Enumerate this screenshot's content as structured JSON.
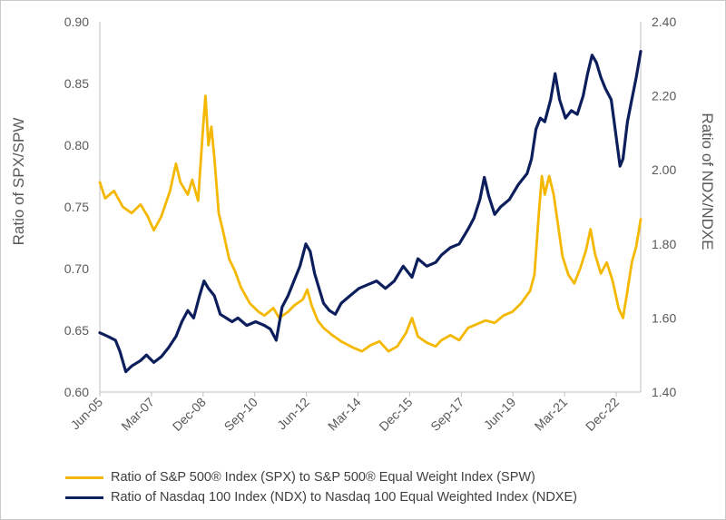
{
  "chart_data": {
    "type": "line",
    "title": "",
    "xlabel": "",
    "y_left_label": "Ratio of SPX/SPW",
    "y_right_label": "Ratio of NDX/NDXE",
    "y_left_range": [
      0.6,
      0.9
    ],
    "y_right_range": [
      1.4,
      2.4
    ],
    "y_left_ticks": [
      "0.60",
      "0.65",
      "0.70",
      "0.75",
      "0.80",
      "0.85",
      "0.90"
    ],
    "y_right_ticks": [
      "1.40",
      "1.60",
      "1.80",
      "2.00",
      "2.20",
      "2.40"
    ],
    "x_range": [
      2005.42,
      2023.75
    ],
    "x_tick_labels": [
      "Jun-05",
      "Mar-07",
      "Dec-08",
      "Sep-10",
      "Jun-12",
      "Mar-14",
      "Dec-15",
      "Sep-17",
      "Jun-19",
      "Mar-21",
      "Dec-22"
    ],
    "x_tick_values": [
      2005.42,
      2007.17,
      2008.92,
      2010.67,
      2012.42,
      2014.17,
      2015.92,
      2017.67,
      2019.42,
      2021.17,
      2022.92
    ],
    "series": [
      {
        "name": "Ratio of S&P 500® Index (SPX) to S&P 500® Equal Weight Index (SPW)",
        "axis": "left",
        "color": "#f5b800",
        "points": [
          [
            2005.42,
            0.77
          ],
          [
            2005.6,
            0.757
          ],
          [
            2005.9,
            0.763
          ],
          [
            2006.2,
            0.75
          ],
          [
            2006.5,
            0.745
          ],
          [
            2006.8,
            0.752
          ],
          [
            2007.05,
            0.742
          ],
          [
            2007.25,
            0.731
          ],
          [
            2007.5,
            0.742
          ],
          [
            2007.8,
            0.763
          ],
          [
            2008.0,
            0.785
          ],
          [
            2008.15,
            0.77
          ],
          [
            2008.4,
            0.76
          ],
          [
            2008.55,
            0.772
          ],
          [
            2008.75,
            0.755
          ],
          [
            2008.92,
            0.815
          ],
          [
            2009.0,
            0.84
          ],
          [
            2009.1,
            0.8
          ],
          [
            2009.2,
            0.815
          ],
          [
            2009.3,
            0.79
          ],
          [
            2009.45,
            0.745
          ],
          [
            2009.6,
            0.73
          ],
          [
            2009.8,
            0.708
          ],
          [
            2010.0,
            0.698
          ],
          [
            2010.2,
            0.685
          ],
          [
            2010.5,
            0.672
          ],
          [
            2010.8,
            0.665
          ],
          [
            2011.0,
            0.662
          ],
          [
            2011.3,
            0.668
          ],
          [
            2011.5,
            0.66
          ],
          [
            2011.8,
            0.665
          ],
          [
            2012.0,
            0.67
          ],
          [
            2012.3,
            0.675
          ],
          [
            2012.45,
            0.683
          ],
          [
            2012.6,
            0.67
          ],
          [
            2012.8,
            0.658
          ],
          [
            2013.0,
            0.652
          ],
          [
            2013.3,
            0.646
          ],
          [
            2013.6,
            0.641
          ],
          [
            2014.0,
            0.636
          ],
          [
            2014.3,
            0.633
          ],
          [
            2014.6,
            0.638
          ],
          [
            2014.9,
            0.641
          ],
          [
            2015.2,
            0.633
          ],
          [
            2015.5,
            0.637
          ],
          [
            2015.8,
            0.648
          ],
          [
            2016.0,
            0.66
          ],
          [
            2016.2,
            0.645
          ],
          [
            2016.5,
            0.64
          ],
          [
            2016.8,
            0.637
          ],
          [
            2017.0,
            0.642
          ],
          [
            2017.3,
            0.646
          ],
          [
            2017.6,
            0.642
          ],
          [
            2017.9,
            0.652
          ],
          [
            2018.2,
            0.655
          ],
          [
            2018.5,
            0.658
          ],
          [
            2018.8,
            0.656
          ],
          [
            2019.1,
            0.662
          ],
          [
            2019.4,
            0.665
          ],
          [
            2019.7,
            0.672
          ],
          [
            2020.0,
            0.682
          ],
          [
            2020.15,
            0.695
          ],
          [
            2020.3,
            0.745
          ],
          [
            2020.4,
            0.775
          ],
          [
            2020.5,
            0.76
          ],
          [
            2020.65,
            0.775
          ],
          [
            2020.8,
            0.76
          ],
          [
            2020.95,
            0.735
          ],
          [
            2021.1,
            0.71
          ],
          [
            2021.3,
            0.695
          ],
          [
            2021.5,
            0.688
          ],
          [
            2021.7,
            0.7
          ],
          [
            2021.9,
            0.715
          ],
          [
            2022.05,
            0.732
          ],
          [
            2022.2,
            0.712
          ],
          [
            2022.4,
            0.696
          ],
          [
            2022.6,
            0.705
          ],
          [
            2022.8,
            0.69
          ],
          [
            2023.0,
            0.668
          ],
          [
            2023.15,
            0.66
          ],
          [
            2023.3,
            0.682
          ],
          [
            2023.45,
            0.705
          ],
          [
            2023.6,
            0.718
          ],
          [
            2023.75,
            0.74
          ]
        ]
      },
      {
        "name": "Ratio of Nasdaq 100 Index (NDX) to Nasdaq 100 Equal Weighted Index (NDXE)",
        "axis": "right",
        "color": "#0c1f5c",
        "points": [
          [
            2005.42,
            1.56
          ],
          [
            2005.7,
            1.55
          ],
          [
            2005.95,
            1.54
          ],
          [
            2006.1,
            1.51
          ],
          [
            2006.3,
            1.455
          ],
          [
            2006.5,
            1.47
          ],
          [
            2006.8,
            1.485
          ],
          [
            2007.0,
            1.5
          ],
          [
            2007.25,
            1.48
          ],
          [
            2007.5,
            1.495
          ],
          [
            2007.75,
            1.52
          ],
          [
            2008.0,
            1.55
          ],
          [
            2008.2,
            1.59
          ],
          [
            2008.4,
            1.62
          ],
          [
            2008.6,
            1.6
          ],
          [
            2008.8,
            1.66
          ],
          [
            2008.95,
            1.7
          ],
          [
            2009.1,
            1.68
          ],
          [
            2009.3,
            1.66
          ],
          [
            2009.5,
            1.61
          ],
          [
            2009.7,
            1.6
          ],
          [
            2009.9,
            1.59
          ],
          [
            2010.1,
            1.6
          ],
          [
            2010.4,
            1.58
          ],
          [
            2010.7,
            1.59
          ],
          [
            2011.0,
            1.58
          ],
          [
            2011.2,
            1.57
          ],
          [
            2011.4,
            1.54
          ],
          [
            2011.6,
            1.63
          ],
          [
            2011.8,
            1.66
          ],
          [
            2012.0,
            1.7
          ],
          [
            2012.2,
            1.74
          ],
          [
            2012.4,
            1.8
          ],
          [
            2012.55,
            1.78
          ],
          [
            2012.7,
            1.72
          ],
          [
            2012.85,
            1.68
          ],
          [
            2013.0,
            1.64
          ],
          [
            2013.2,
            1.62
          ],
          [
            2013.4,
            1.61
          ],
          [
            2013.6,
            1.64
          ],
          [
            2013.9,
            1.66
          ],
          [
            2014.2,
            1.68
          ],
          [
            2014.5,
            1.69
          ],
          [
            2014.8,
            1.7
          ],
          [
            2015.1,
            1.68
          ],
          [
            2015.4,
            1.7
          ],
          [
            2015.7,
            1.74
          ],
          [
            2016.0,
            1.71
          ],
          [
            2016.2,
            1.76
          ],
          [
            2016.5,
            1.74
          ],
          [
            2016.8,
            1.75
          ],
          [
            2017.0,
            1.77
          ],
          [
            2017.3,
            1.79
          ],
          [
            2017.6,
            1.8
          ],
          [
            2017.9,
            1.84
          ],
          [
            2018.1,
            1.87
          ],
          [
            2018.3,
            1.92
          ],
          [
            2018.45,
            1.98
          ],
          [
            2018.6,
            1.93
          ],
          [
            2018.8,
            1.88
          ],
          [
            2019.0,
            1.9
          ],
          [
            2019.3,
            1.92
          ],
          [
            2019.6,
            1.96
          ],
          [
            2019.9,
            1.99
          ],
          [
            2020.05,
            2.03
          ],
          [
            2020.2,
            2.11
          ],
          [
            2020.35,
            2.14
          ],
          [
            2020.5,
            2.13
          ],
          [
            2020.7,
            2.19
          ],
          [
            2020.85,
            2.26
          ],
          [
            2021.0,
            2.19
          ],
          [
            2021.2,
            2.14
          ],
          [
            2021.4,
            2.16
          ],
          [
            2021.6,
            2.15
          ],
          [
            2021.8,
            2.2
          ],
          [
            2021.95,
            2.26
          ],
          [
            2022.1,
            2.31
          ],
          [
            2022.25,
            2.29
          ],
          [
            2022.4,
            2.25
          ],
          [
            2022.55,
            2.22
          ],
          [
            2022.75,
            2.19
          ],
          [
            2022.9,
            2.1
          ],
          [
            2023.05,
            2.01
          ],
          [
            2023.15,
            2.03
          ],
          [
            2023.3,
            2.13
          ],
          [
            2023.45,
            2.19
          ],
          [
            2023.6,
            2.25
          ],
          [
            2023.75,
            2.32
          ]
        ]
      }
    ]
  }
}
